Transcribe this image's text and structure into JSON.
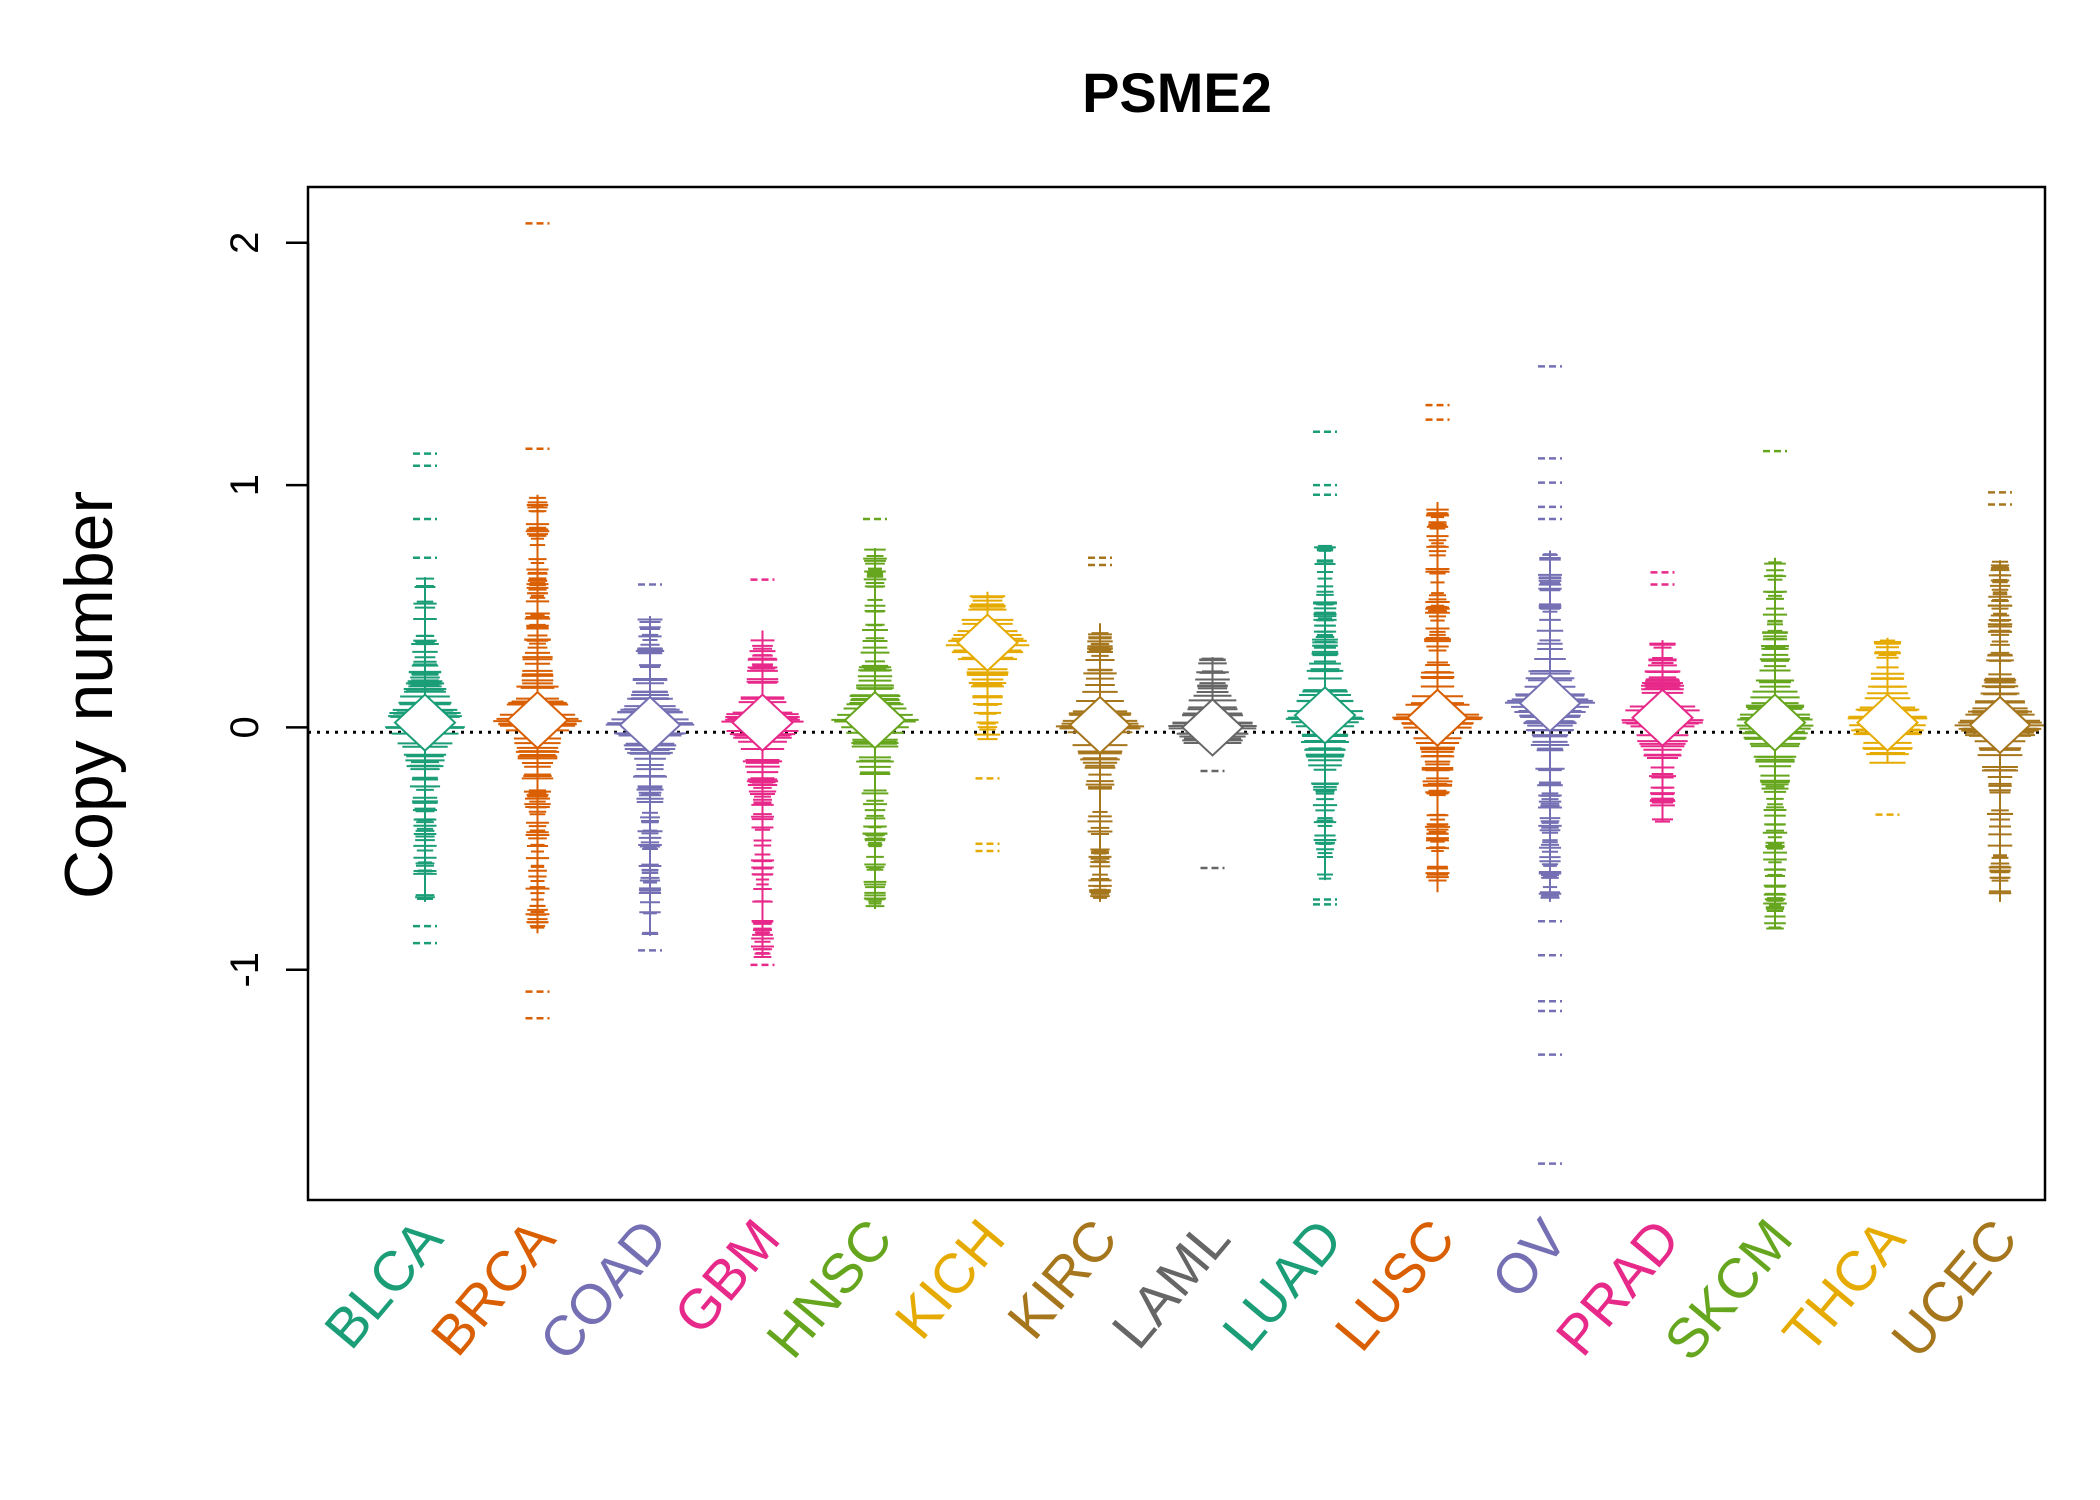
{
  "chart_data": {
    "type": "beeswarm",
    "title": "PSME2",
    "xlabel": "",
    "ylabel": "Copy number",
    "ylim": [
      -1.95,
      2.23
    ],
    "yticks": [
      -1,
      0,
      1,
      2
    ],
    "ytick_labels": [
      "-1",
      "0",
      "1",
      "2"
    ],
    "reference_line": {
      "y": -0.02,
      "style": "dotted",
      "color": "#000000"
    },
    "grid": false,
    "legend": "none",
    "categories": [
      "BLCA",
      "BRCA",
      "COAD",
      "GBM",
      "HNSC",
      "KICH",
      "KIRC",
      "LAML",
      "LUAD",
      "LUSC",
      "OV",
      "PRAD",
      "SKCM",
      "THCA",
      "UCEC"
    ],
    "colors": [
      "#1B9E77",
      "#D95F02",
      "#7570B3",
      "#E7298A",
      "#66A61E",
      "#E6AB02",
      "#A6761D",
      "#666666",
      "#1B9E77",
      "#D95F02",
      "#7570B3",
      "#E7298A",
      "#66A61E",
      "#E6AB02",
      "#A6761D"
    ],
    "series": [
      {
        "name": "BLCA",
        "min": -0.89,
        "max": 1.13,
        "core_low": -0.72,
        "core_high": 0.62,
        "center": 0.02,
        "outliers": [
          1.13,
          1.08,
          0.86,
          0.7,
          -0.82,
          -0.89
        ]
      },
      {
        "name": "BRCA",
        "min": -1.2,
        "max": 2.08,
        "core_low": -0.85,
        "core_high": 0.96,
        "center": 0.03,
        "outliers": [
          2.08,
          1.15,
          -1.09,
          -1.2
        ]
      },
      {
        "name": "COAD",
        "min": -0.92,
        "max": 0.59,
        "core_low": -0.86,
        "core_high": 0.46,
        "center": 0.01,
        "outliers": [
          0.59,
          -0.92
        ]
      },
      {
        "name": "GBM",
        "min": -0.98,
        "max": 0.61,
        "core_low": -0.95,
        "core_high": 0.4,
        "center": 0.02,
        "outliers": [
          0.61,
          -0.98
        ]
      },
      {
        "name": "HNSC",
        "min": -0.77,
        "max": 0.86,
        "core_low": -0.75,
        "core_high": 0.74,
        "center": 0.03,
        "outliers": [
          0.86
        ]
      },
      {
        "name": "KICH",
        "min": -0.51,
        "max": 0.56,
        "core_low": -0.05,
        "core_high": 0.56,
        "center": 0.35,
        "outliers": [
          -0.21,
          -0.48,
          -0.51
        ]
      },
      {
        "name": "KIRC",
        "min": -0.73,
        "max": 0.7,
        "core_low": -0.72,
        "core_high": 0.43,
        "center": 0.01,
        "outliers": [
          0.7,
          0.67
        ]
      },
      {
        "name": "LAML",
        "min": -0.58,
        "max": 0.29,
        "core_low": -0.1,
        "core_high": 0.29,
        "center": 0.0,
        "outliers": [
          -0.18,
          -0.58
        ]
      },
      {
        "name": "LUAD",
        "min": -0.73,
        "max": 1.22,
        "core_low": -0.63,
        "core_high": 0.75,
        "center": 0.05,
        "outliers": [
          1.22,
          1.0,
          0.96,
          -0.71,
          -0.73
        ]
      },
      {
        "name": "LUSC",
        "min": -0.77,
        "max": 1.33,
        "core_low": -0.68,
        "core_high": 0.93,
        "center": 0.04,
        "outliers": [
          1.33,
          1.27
        ]
      },
      {
        "name": "OV",
        "min": -1.8,
        "max": 1.49,
        "core_low": -0.72,
        "core_high": 0.73,
        "center": 0.1,
        "outliers": [
          1.49,
          1.11,
          1.01,
          0.91,
          0.86,
          -0.8,
          -0.94,
          -1.13,
          -1.17,
          -1.35,
          -1.8
        ]
      },
      {
        "name": "PRAD",
        "min": -0.39,
        "max": 0.64,
        "core_low": -0.39,
        "core_high": 0.36,
        "center": 0.04,
        "outliers": [
          0.64,
          0.59
        ]
      },
      {
        "name": "SKCM",
        "min": -0.83,
        "max": 1.14,
        "core_low": -0.83,
        "core_high": 0.7,
        "center": 0.02,
        "outliers": [
          1.14
        ]
      },
      {
        "name": "THCA",
        "min": -0.36,
        "max": 0.37,
        "core_low": -0.15,
        "core_high": 0.37,
        "center": 0.02,
        "outliers": [
          -0.36
        ]
      },
      {
        "name": "UCEC",
        "min": -0.72,
        "max": 0.97,
        "core_low": -0.72,
        "core_high": 0.69,
        "center": 0.01,
        "outliers": [
          0.97,
          0.92
        ]
      }
    ]
  }
}
